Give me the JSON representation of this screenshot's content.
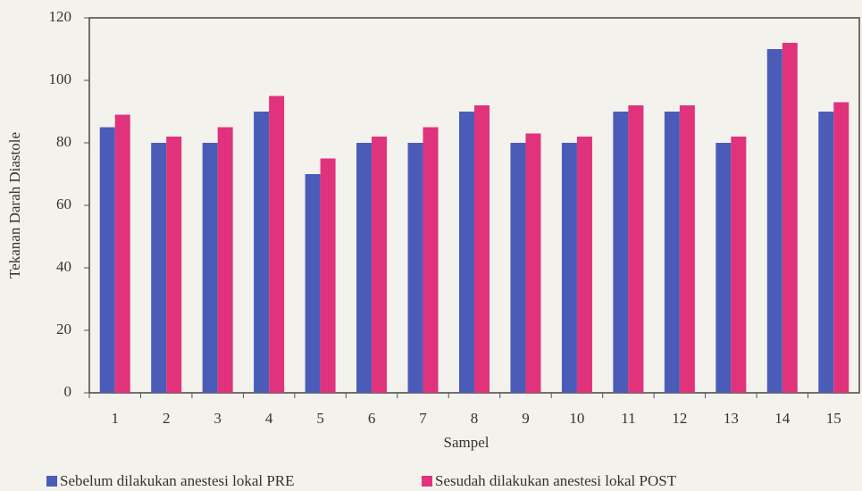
{
  "chart_data": {
    "type": "bar",
    "x_label": "Sampel",
    "y_label": "Tekanan Darah Diastole",
    "categories": [
      "1",
      "2",
      "3",
      "4",
      "5",
      "6",
      "7",
      "8",
      "9",
      "10",
      "11",
      "12",
      "13",
      "14",
      "15"
    ],
    "series": [
      {
        "name": "Sebelum dilakukan anestesi lokal PRE",
        "color": "#4a5cb8",
        "values": [
          85,
          80,
          80,
          90,
          70,
          80,
          80,
          90,
          80,
          80,
          90,
          90,
          80,
          110,
          90
        ]
      },
      {
        "name": "Sesudah dilakukan anestesi lokal POST",
        "color": "#e0337c",
        "values": [
          89,
          82,
          85,
          95,
          75,
          82,
          85,
          92,
          83,
          82,
          92,
          92,
          82,
          112,
          93
        ]
      }
    ],
    "ylim": [
      0,
      120
    ],
    "yticks": [
      0,
      20,
      40,
      60,
      80,
      100,
      120
    ],
    "grid": false,
    "legend": "bottom"
  }
}
